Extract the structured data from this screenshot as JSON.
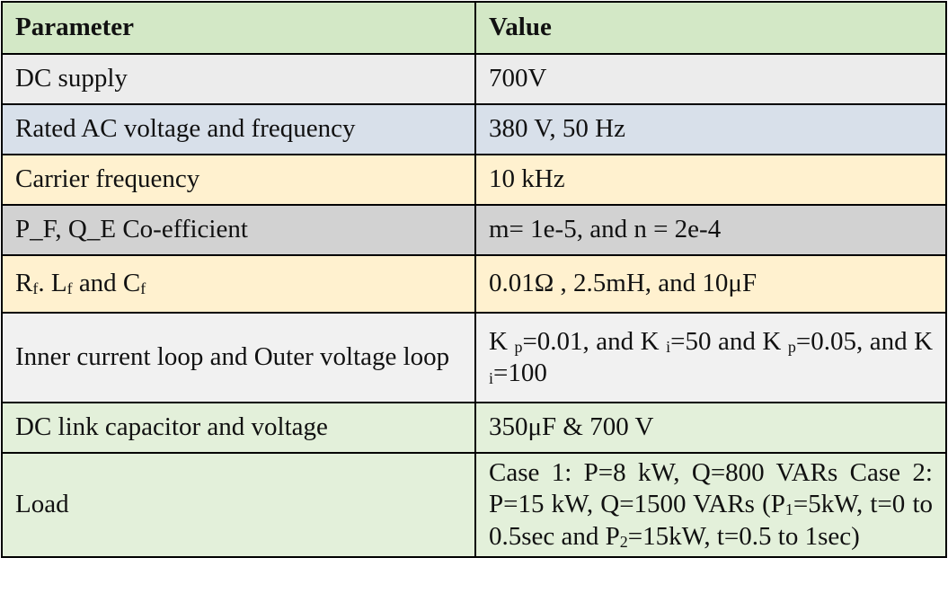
{
  "table": {
    "header": [
      "Parameter",
      "Value"
    ],
    "rows": [
      [
        "DC supply",
        "700V"
      ],
      [
        "Rated AC voltage and frequency",
        "380 V, 50 Hz"
      ],
      [
        "Carrier frequency",
        "10 kHz"
      ],
      [
        "P_F, Q_E Co-efficient",
        "m= 1e-5, and n = 2e-4"
      ],
      [
        [
          "R",
          {
            "sub": "f"
          },
          ". L",
          {
            "sub": "f"
          },
          " and C",
          {
            "sub": "f"
          }
        ],
        "0.01Ω , 2.5mH, and 10μF"
      ],
      [
        "Inner current loop and Outer voltage loop",
        [
          "K ",
          {
            "sub": "p"
          },
          "=0.01, and K ",
          {
            "sub": "i"
          },
          "=50 and K ",
          {
            "sub": "p"
          },
          "=0.05, and K ",
          {
            "sub": "i"
          },
          "=100"
        ]
      ],
      [
        "DC link capacitor and voltage",
        "350μF & 700 V"
      ],
      [
        "Load",
        [
          "Case 1: P=8 kW, Q=800 VARs Case 2: P=15 kW, Q=1500 VARs (P",
          {
            "sub": "1"
          },
          "=5kW, t=0 to 0.5sec and P",
          {
            "sub": "2"
          },
          "=15kW, t=0.5 to 1sec)"
        ]
      ]
    ]
  }
}
